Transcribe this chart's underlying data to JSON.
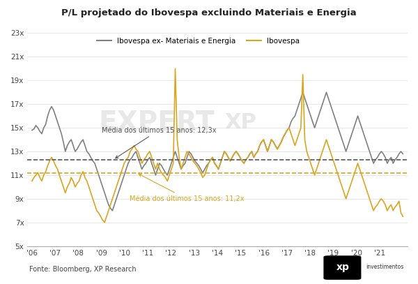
{
  "title": "P/L projetado do Ibovespa excluindo Materiais e Energia",
  "ylabel": "",
  "xlabel": "",
  "source": "Fonte: Bloomberg, XP Research",
  "legend_ibovex": "Ibovespa ex- Materiais e Energia",
  "legend_ibov": "Ibovespa",
  "mean_ibovex": 12.3,
  "mean_ibov": 11.2,
  "mean_ibovex_label": "Média dos últimos 15 anos: 12,3x",
  "mean_ibov_label": "Média dos últimos 15 anos: 11,2x",
  "ylim": [
    5,
    23
  ],
  "yticks": [
    5,
    7,
    9,
    11,
    13,
    15,
    17,
    19,
    21,
    23
  ],
  "ytick_labels": [
    "5x",
    "7x",
    "9x",
    "11x",
    "13x",
    "15x",
    "17x",
    "19x",
    "21x",
    "23x"
  ],
  "background_color": "#ffffff",
  "color_ibovex": "#808080",
  "color_ibov": "#DAA520",
  "mean_ibovex_color": "#555555",
  "mean_ibov_color": "#DAA520",
  "watermark_text": "EXPERT",
  "ibovex_data": [
    14.8,
    14.9,
    15.2,
    15.0,
    14.7,
    14.5,
    15.0,
    15.3,
    16.0,
    16.5,
    16.8,
    16.5,
    16.0,
    15.5,
    15.0,
    14.5,
    13.8,
    13.0,
    13.5,
    13.8,
    14.0,
    13.5,
    13.0,
    13.2,
    13.5,
    13.8,
    14.0,
    13.5,
    13.0,
    12.8,
    12.5,
    12.2,
    12.0,
    11.5,
    11.0,
    10.5,
    10.0,
    9.5,
    9.0,
    8.5,
    8.2,
    8.0,
    8.5,
    9.0,
    9.5,
    10.0,
    10.5,
    11.0,
    11.5,
    12.0,
    12.3,
    12.5,
    12.8,
    13.0,
    12.5,
    12.0,
    11.5,
    11.8,
    12.0,
    12.3,
    12.5,
    12.0,
    11.5,
    11.0,
    11.5,
    12.0,
    11.8,
    11.5,
    11.2,
    11.0,
    11.5,
    12.0,
    12.5,
    13.0,
    12.5,
    12.0,
    11.5,
    11.8,
    12.0,
    12.5,
    13.0,
    12.8,
    12.5,
    12.2,
    12.0,
    11.8,
    11.5,
    11.2,
    11.5,
    11.8,
    12.0,
    12.3,
    12.5,
    12.0,
    11.8,
    11.5,
    12.0,
    12.5,
    13.0,
    12.8,
    12.5,
    12.2,
    12.5,
    12.8,
    13.0,
    12.8,
    12.5,
    12.2,
    12.0,
    12.3,
    12.5,
    12.8,
    13.0,
    12.5,
    12.8,
    13.0,
    13.5,
    13.8,
    14.0,
    13.5,
    13.0,
    13.5,
    14.0,
    13.8,
    13.5,
    13.2,
    13.5,
    13.8,
    14.2,
    14.5,
    14.8,
    15.0,
    15.5,
    15.8,
    16.0,
    16.5,
    17.0,
    17.5,
    18.0,
    17.5,
    17.0,
    16.5,
    16.0,
    15.5,
    15.0,
    15.5,
    16.0,
    16.5,
    17.0,
    17.5,
    18.0,
    17.5,
    17.0,
    16.5,
    16.0,
    15.5,
    15.0,
    14.5,
    14.0,
    13.5,
    13.0,
    13.5,
    14.0,
    14.5,
    15.0,
    15.5,
    16.0,
    15.5,
    15.0,
    14.5,
    14.0,
    13.5,
    13.0,
    12.5,
    12.0,
    12.3,
    12.5,
    12.8,
    13.0,
    12.8,
    12.5,
    12.0,
    12.3,
    12.5,
    12.0,
    12.3,
    12.5,
    12.8,
    13.0,
    12.8
  ],
  "ibov_data": [
    10.5,
    10.8,
    11.0,
    11.2,
    10.8,
    10.5,
    11.0,
    11.3,
    11.8,
    12.2,
    12.5,
    12.2,
    11.8,
    11.5,
    11.0,
    10.5,
    10.0,
    9.5,
    10.0,
    10.3,
    10.8,
    10.5,
    10.0,
    10.3,
    10.5,
    11.0,
    11.3,
    10.8,
    10.5,
    10.0,
    9.5,
    9.0,
    8.5,
    8.0,
    7.8,
    7.5,
    7.2,
    7.0,
    7.5,
    8.0,
    8.5,
    9.0,
    9.5,
    10.0,
    10.5,
    11.0,
    11.5,
    12.0,
    12.3,
    12.5,
    13.0,
    13.2,
    13.5,
    13.2,
    13.0,
    12.5,
    12.0,
    12.3,
    12.5,
    12.8,
    13.0,
    12.5,
    12.0,
    11.5,
    12.0,
    11.5,
    11.2,
    11.0,
    10.8,
    10.5,
    11.0,
    11.5,
    12.0,
    20.0,
    14.0,
    12.5,
    11.5,
    12.0,
    12.5,
    13.0,
    12.8,
    12.5,
    12.2,
    12.0,
    11.8,
    11.5,
    11.2,
    10.8,
    11.0,
    11.5,
    12.0,
    12.3,
    12.5,
    12.0,
    11.8,
    11.5,
    12.0,
    12.5,
    13.0,
    12.8,
    12.5,
    12.2,
    12.5,
    12.8,
    13.0,
    12.8,
    12.5,
    12.2,
    12.0,
    12.3,
    12.5,
    12.8,
    13.0,
    12.5,
    12.8,
    13.0,
    13.5,
    13.8,
    14.0,
    13.5,
    13.0,
    13.5,
    14.0,
    13.8,
    13.5,
    13.2,
    13.5,
    13.8,
    14.2,
    14.5,
    14.8,
    15.0,
    14.5,
    14.0,
    13.5,
    14.0,
    14.5,
    15.0,
    19.5,
    14.0,
    13.0,
    12.5,
    12.0,
    11.5,
    11.0,
    11.5,
    12.0,
    12.5,
    13.0,
    13.5,
    14.0,
    13.5,
    13.0,
    12.5,
    12.0,
    11.5,
    11.0,
    10.5,
    10.0,
    9.5,
    9.0,
    9.5,
    10.0,
    10.5,
    11.0,
    11.5,
    12.0,
    11.5,
    11.0,
    10.5,
    10.0,
    9.5,
    9.0,
    8.5,
    8.0,
    8.3,
    8.5,
    8.8,
    9.0,
    8.8,
    8.5,
    8.0,
    8.3,
    8.5,
    8.0,
    8.3,
    8.5,
    8.8,
    7.8,
    7.5
  ],
  "x_start_year": 2006,
  "x_end_year": 2022,
  "xtick_years": [
    2006,
    2007,
    2008,
    2009,
    2010,
    2011,
    2012,
    2013,
    2014,
    2015,
    2016,
    2017,
    2018,
    2019,
    2020,
    2021
  ],
  "xtick_labels": [
    "'06",
    "'07",
    "'08",
    "'09",
    "'10",
    "'11",
    "'12",
    "'13",
    "'14",
    "'15",
    "'16",
    "'17",
    "'18",
    "'19",
    "'20",
    "'21"
  ]
}
